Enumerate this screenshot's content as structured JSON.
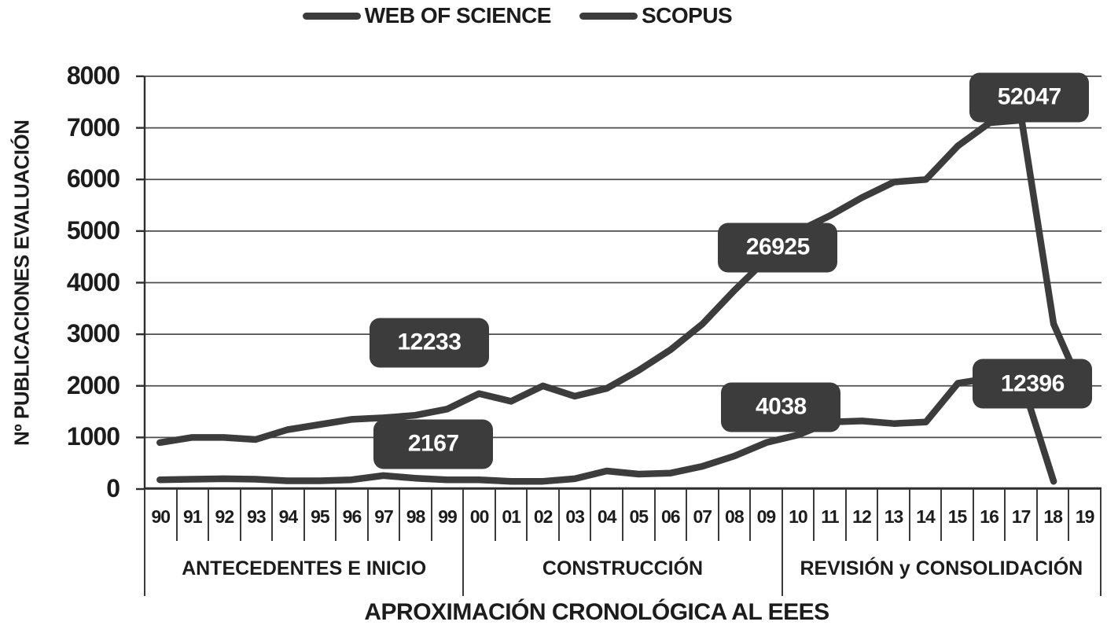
{
  "chart_data": {
    "type": "line",
    "title": "",
    "ylabel": "Nº PUBLICACIONES EVALUACIÓN",
    "xlabel": "APROXIMACIÓN CRONOLÓGICA AL EEES",
    "ylim": [
      0,
      8000
    ],
    "yticks": [
      0,
      1000,
      2000,
      3000,
      4000,
      5000,
      6000,
      7000,
      8000
    ],
    "grid": true,
    "legend_position": "top",
    "categories": [
      "90",
      "91",
      "92",
      "93",
      "94",
      "95",
      "96",
      "97",
      "98",
      "99",
      "00",
      "01",
      "02",
      "03",
      "04",
      "05",
      "06",
      "07",
      "08",
      "09",
      "10",
      "11",
      "12",
      "13",
      "14",
      "15",
      "16",
      "17",
      "18",
      "19"
    ],
    "periods": [
      {
        "label": "ANTECEDENTES E INICIO",
        "span": 10
      },
      {
        "label": "CONSTRUCCIÓN",
        "span": 10
      },
      {
        "label": "REVISIÓN y CONSOLIDACIÓN",
        "span": 10
      }
    ],
    "series": [
      {
        "name": "WEB OF SCIENCE",
        "values": [
          900,
          1000,
          1000,
          960,
          1150,
          1250,
          1350,
          1380,
          1430,
          1550,
          1850,
          1700,
          2000,
          1800,
          1950,
          2300,
          2700,
          3200,
          3850,
          4450,
          5000,
          5300,
          5650,
          5950,
          6000,
          6650,
          7100,
          7150,
          3200,
          1800
        ]
      },
      {
        "name": "SCOPUS",
        "values": [
          180,
          190,
          200,
          190,
          160,
          160,
          180,
          260,
          210,
          180,
          180,
          150,
          150,
          200,
          350,
          290,
          310,
          440,
          640,
          900,
          1050,
          1300,
          1320,
          1270,
          1300,
          2050,
          2150,
          2100,
          150,
          null
        ]
      }
    ],
    "annotations": [
      {
        "label": "12233",
        "xi": 8.44,
        "v": 2835
      },
      {
        "label": "2167",
        "xi": 8.57,
        "v": 870
      },
      {
        "label": "26925",
        "xi": 19.36,
        "v": 4680
      },
      {
        "label": "4038",
        "xi": 19.46,
        "v": 1585
      },
      {
        "label": "52047",
        "xi": 27.24,
        "v": 7590
      },
      {
        "label": "12396",
        "xi": 27.34,
        "v": 2040
      }
    ],
    "colors": {
      "line": "#3c3c3c",
      "grid": "#4d4d4d",
      "axis": "#2e2e2e",
      "callout_bg": "#3c3c3c",
      "callout_text": "#ffffff",
      "text": "#1c1c1c"
    }
  }
}
